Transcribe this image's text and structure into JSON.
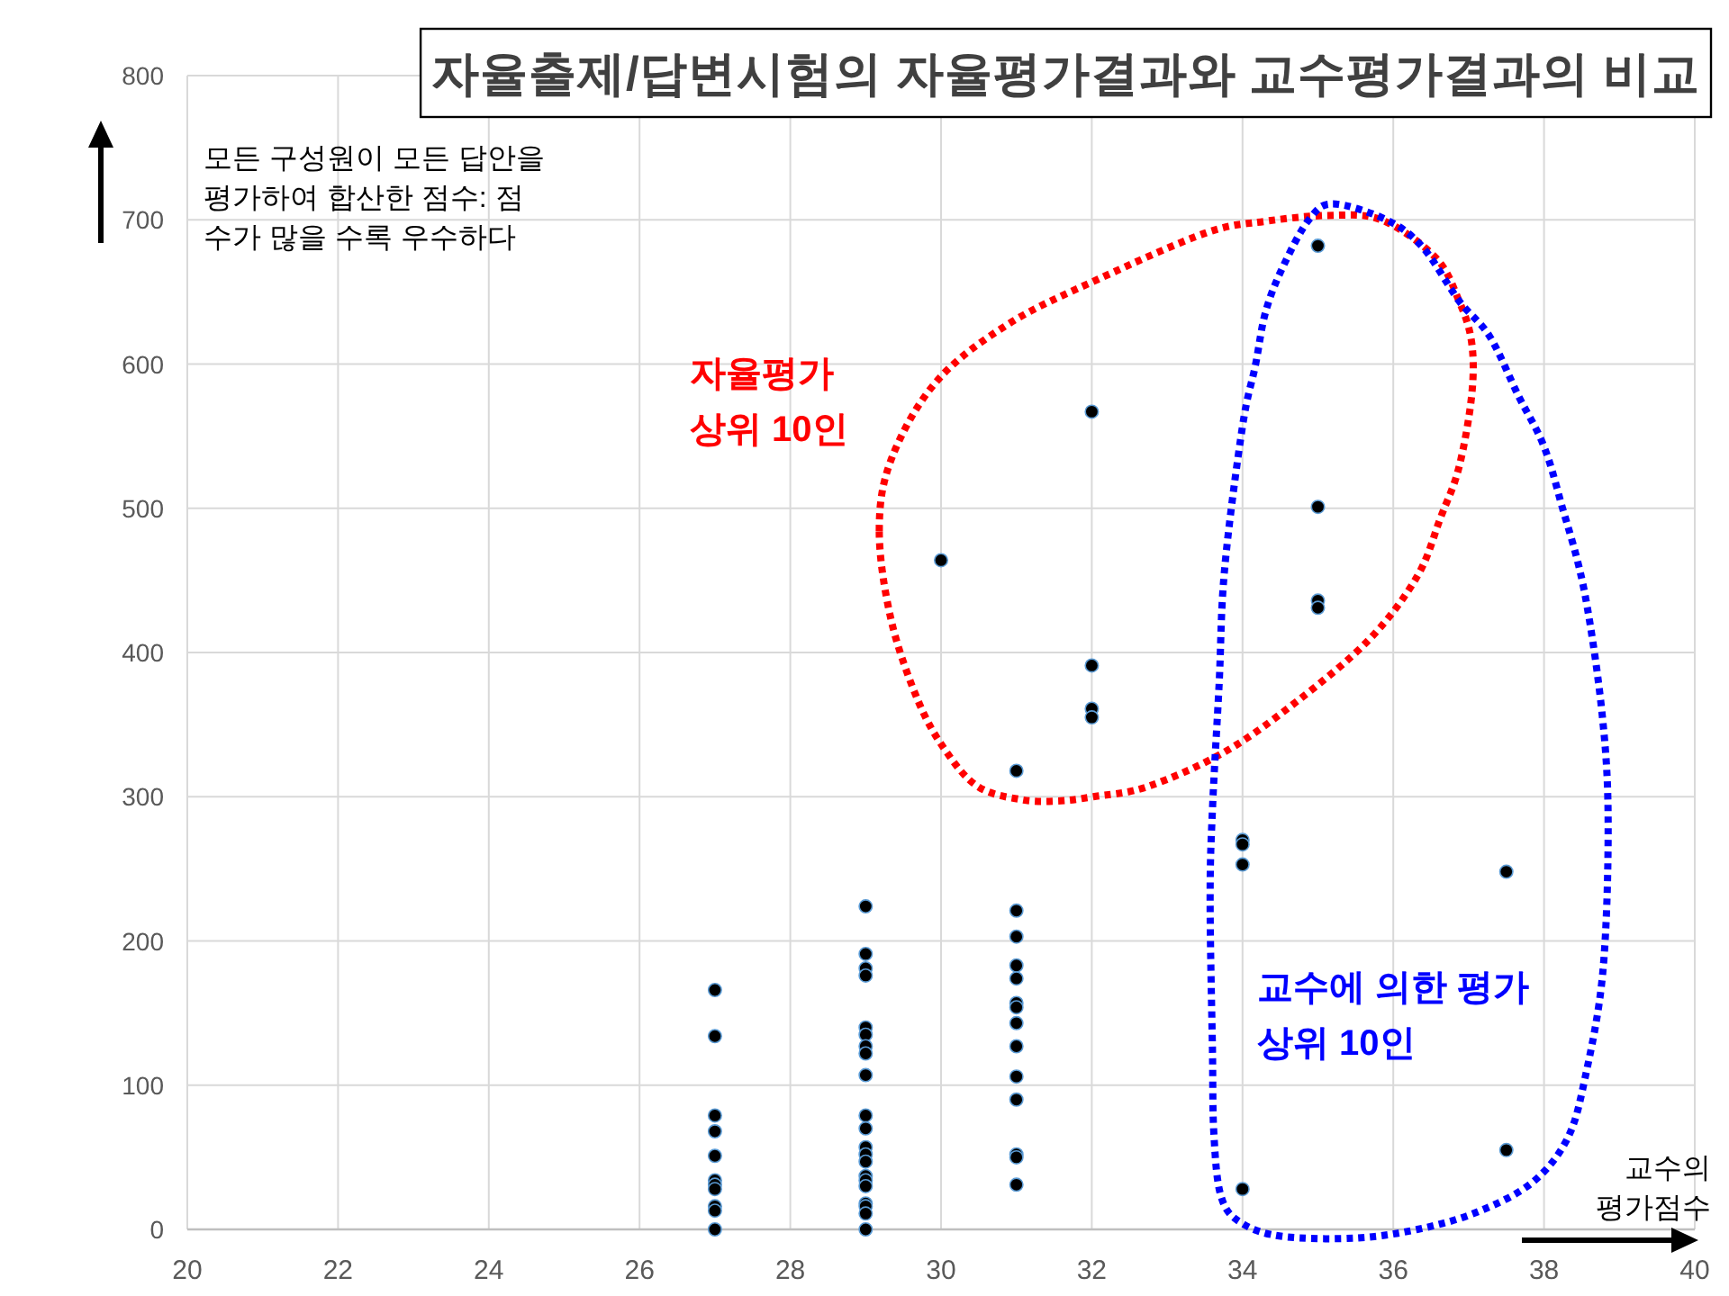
{
  "chart_data": {
    "type": "scatter",
    "title": "자율출제/답변시험의 자율평가결과와 교수평가결과의 비교",
    "xlabel": "교수의 평가점수",
    "ylabel": "모든 구성원이 모든 답안을 평가하여 합산한 점수: 점수가 많을 수록 우수하다",
    "x": [
      27,
      27,
      27,
      27,
      27,
      27,
      27,
      27,
      27,
      27,
      27,
      29,
      29,
      29,
      29,
      29,
      29,
      29,
      29,
      29,
      29,
      29,
      29,
      29,
      29,
      29,
      29,
      29,
      29,
      29,
      29,
      29,
      30,
      31,
      31,
      31,
      31,
      31,
      31,
      31,
      31,
      31,
      31,
      31,
      31,
      31,
      31,
      32,
      32,
      32,
      32,
      34,
      34,
      34,
      34,
      35,
      35,
      35,
      35,
      37.5,
      37.5
    ],
    "values": [
      166,
      134,
      79,
      68,
      51,
      34,
      31,
      28,
      16,
      13,
      0,
      224,
      191,
      181,
      176,
      140,
      135,
      127,
      122,
      107,
      79,
      70,
      57,
      52,
      47,
      37,
      34,
      30,
      18,
      16,
      11,
      0,
      464,
      318,
      221,
      203,
      183,
      174,
      157,
      154,
      143,
      127,
      106,
      90,
      52,
      50,
      31,
      567,
      391,
      361,
      355,
      270,
      267,
      253,
      28,
      682,
      501,
      436,
      431,
      248,
      55
    ],
    "color": "#000000",
    "marker": "circle",
    "xlim": [
      20,
      40
    ],
    "ylim": [
      0,
      800
    ],
    "xticks": [
      20,
      22,
      24,
      26,
      28,
      30,
      32,
      34,
      36,
      38,
      40
    ],
    "yticks": [
      0,
      100,
      200,
      300,
      400,
      500,
      600,
      700,
      800
    ],
    "grid": true,
    "annotations": [
      "자율평가\n상위 10인",
      "교수에 의한 평가\n상위 10인"
    ]
  }
}
